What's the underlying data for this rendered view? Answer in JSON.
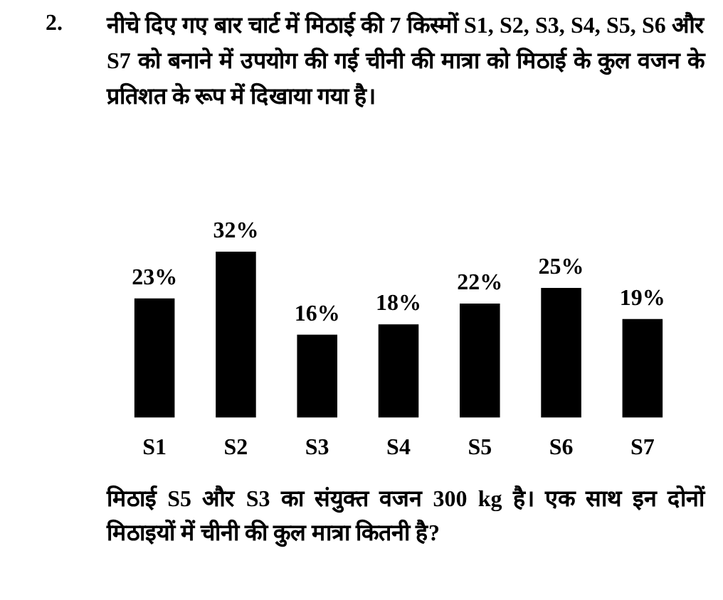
{
  "chart_data": {
    "type": "bar",
    "title": "नीचे दिए गए बार चार्ट में मिठाई की 7 किस्मों S1, S2, S3, S4, S5, S6 और S7 को बनाने में उपयोग की गई चीनी की मात्रा को मिठाई के कुल वजन के प्रतिशत के रूप में दिखाया गया है।",
    "annotations": [
      "2.",
      "मिठाई S5 और S3 का संयुक्त वजन 300 kg है। एक साथ इन दोनों मिठाइयों में चीनी की कुल मात्रा कितनी है?"
    ],
    "categories": [
      "S1",
      "S2",
      "S3",
      "S4",
      "S5",
      "S6",
      "S7"
    ],
    "values": [
      23,
      32,
      16,
      18,
      22,
      25,
      19
    ],
    "value_labels": [
      "23%",
      "32%",
      "16%",
      "18%",
      "22%",
      "25%",
      "19%"
    ],
    "color": "#000000"
  }
}
